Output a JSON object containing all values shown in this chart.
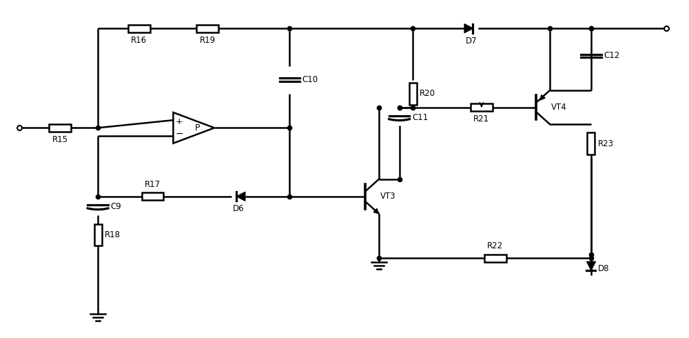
{
  "bg_color": "#ffffff",
  "line_color": "#000000",
  "lw": 1.8,
  "fig_width": 10.0,
  "fig_height": 4.9,
  "dpi": 100,
  "xlim": [
    0,
    100
  ],
  "ylim": [
    0,
    49
  ]
}
